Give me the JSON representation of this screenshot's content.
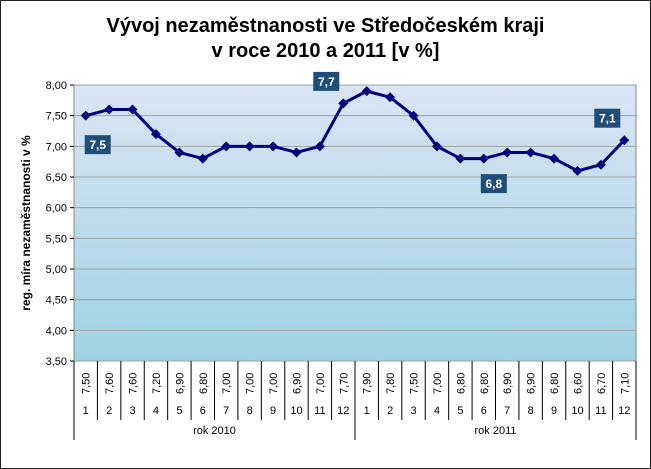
{
  "chart_data": {
    "type": "line",
    "title_line1": "Vývoj nezaměstnanosti  ve Středočeském  kraji",
    "title_line2": "v roce  2010 a 2011 [v %]",
    "ylabel": "reg. míra nezaměstnanosti v %",
    "ylim": [
      3.5,
      8.0
    ],
    "yticks": [
      "3,50",
      "4,00",
      "4,50",
      "5,00",
      "5,50",
      "6,00",
      "6,50",
      "7,00",
      "7,50",
      "8,00"
    ],
    "months": [
      "1",
      "2",
      "3",
      "4",
      "5",
      "6",
      "7",
      "8",
      "9",
      "10",
      "11",
      "12",
      "1",
      "2",
      "3",
      "4",
      "5",
      "6",
      "7",
      "8",
      "9",
      "10",
      "11",
      "12"
    ],
    "groups": [
      "rok 2010",
      "rok 2011"
    ],
    "value_labels": [
      "7,50",
      "7,60",
      "7,60",
      "7,20",
      "6,90",
      "6,80",
      "7,00",
      "7,00",
      "7,00",
      "6,90",
      "7,00",
      "7,70",
      "7,90",
      "7,80",
      "7,50",
      "7,00",
      "6,80",
      "6,80",
      "6,90",
      "6,90",
      "6,80",
      "6,60",
      "6,70",
      "7,10"
    ],
    "series": [
      {
        "values": [
          7.5,
          7.6,
          7.6,
          7.2,
          6.9,
          6.8,
          7.0,
          7.0,
          7.0,
          6.9,
          7.0,
          7.7,
          7.9,
          7.8,
          7.5,
          7.0,
          6.8,
          6.8,
          6.9,
          6.9,
          6.8,
          6.6,
          6.7,
          7.1
        ]
      }
    ],
    "callouts": [
      {
        "index": 0,
        "text": "7,5"
      },
      {
        "index": 11,
        "text": "7,7"
      },
      {
        "index": 17,
        "text": "6,8"
      },
      {
        "index": 23,
        "text": "7,1"
      }
    ],
    "colors": {
      "line": "#000080",
      "callout_bg": "#1f4e79",
      "callout_text": "#ffffff",
      "plot_top": "#dbe5f4",
      "plot_bottom": "#9fd3e3"
    },
    "grid": true
  }
}
